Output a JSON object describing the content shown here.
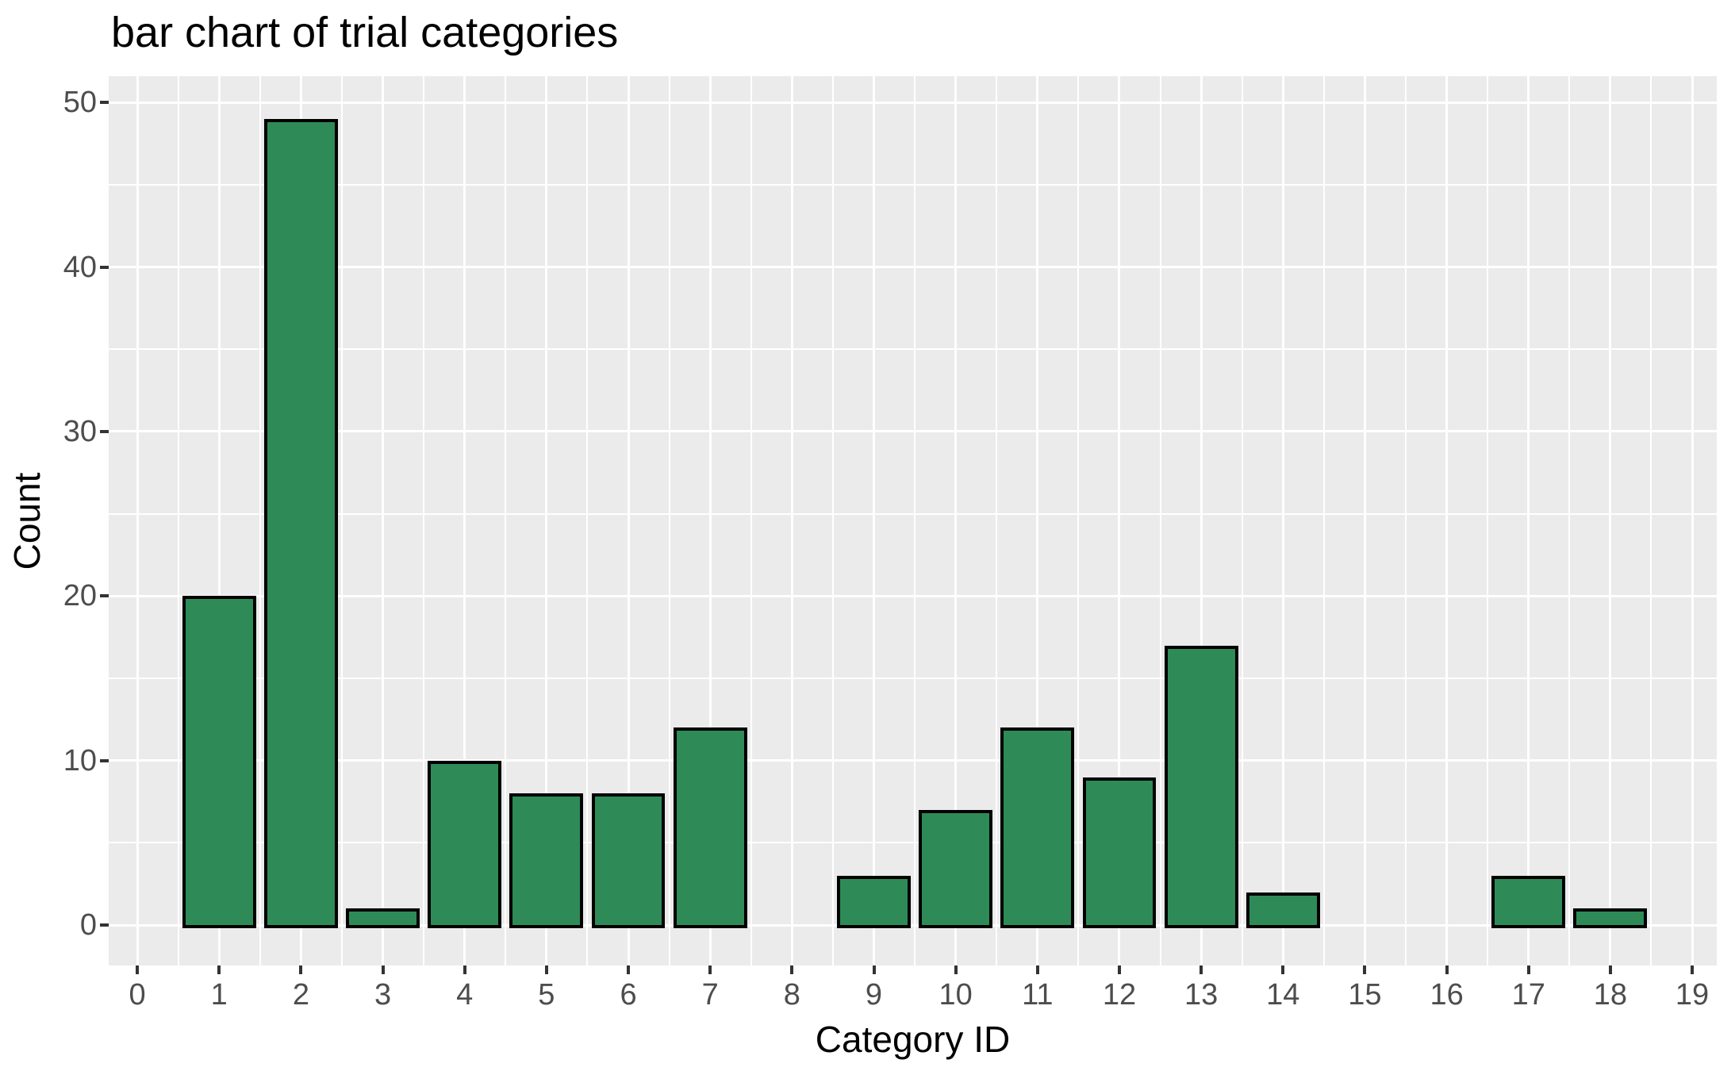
{
  "title": "bar chart of trial categories",
  "chart_data": {
    "type": "bar",
    "title": "bar chart of trial categories",
    "xlabel": "Category ID",
    "ylabel": "Count",
    "categories": [
      0,
      1,
      2,
      3,
      4,
      5,
      6,
      7,
      8,
      9,
      10,
      11,
      12,
      13,
      14,
      15,
      16,
      17,
      18,
      19
    ],
    "values": [
      0,
      20,
      49,
      1,
      10,
      8,
      8,
      12,
      0,
      3,
      7,
      12,
      9,
      17,
      2,
      0,
      0,
      3,
      1,
      0
    ],
    "x_ticks": [
      0,
      1,
      2,
      3,
      4,
      5,
      6,
      7,
      8,
      9,
      10,
      11,
      12,
      13,
      14,
      15,
      16,
      17,
      18,
      19
    ],
    "y_ticks": [
      0,
      10,
      20,
      30,
      40,
      50
    ],
    "y_minor_ticks": [
      5,
      15,
      25,
      35,
      45
    ],
    "xlim": [
      -0.35,
      19.3
    ],
    "ylim": [
      -2.45,
      51.6
    ],
    "bar_width": 0.9,
    "grid": "on",
    "legend": "none",
    "style": "ggplot-gray",
    "colors": {
      "bar_fill": "#2E8B57",
      "bar_border": "#000000",
      "panel_bg": "#EBEBEB",
      "grid_major": "#FFFFFF",
      "grid_minor": "#FFFFFF",
      "tick_mark": "#333333",
      "tick_label": "#4D4D4D",
      "axis_title": "#000000",
      "title_color": "#000000",
      "page_bg": "#FFFFFF"
    }
  }
}
